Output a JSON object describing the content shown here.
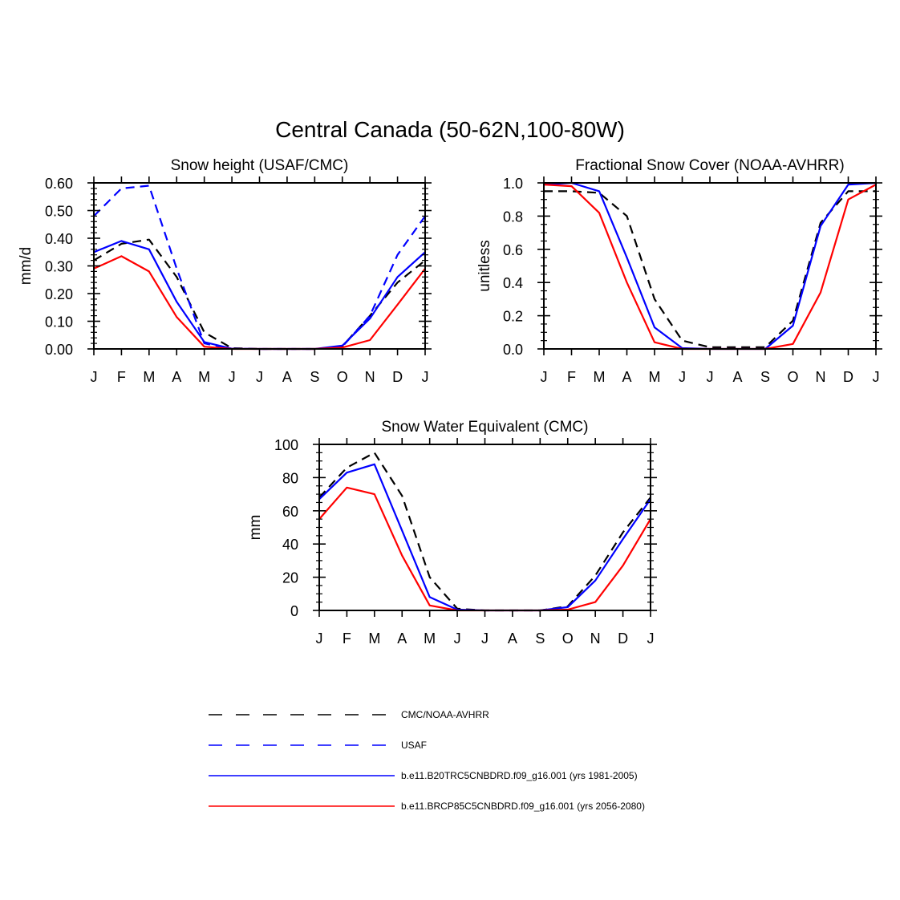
{
  "figure": {
    "title": "Central Canada (50-62N,100-80W)"
  },
  "legend": {
    "entries": [
      {
        "label": "CMC/NOAA-AVHRR",
        "color": "#000000",
        "dash": true
      },
      {
        "label": "USAF",
        "color": "#0000ff",
        "dash": true
      },
      {
        "label": "b.e11.B20TRC5CNBDRD.f09_g16.001 (yrs 1981-2005)",
        "color": "#0000ff",
        "dash": false
      },
      {
        "label": "b.e11.BRCP85C5CNBDRD.f09_g16.001 (yrs 2056-2080)",
        "color": "#ff0000",
        "dash": false
      }
    ]
  },
  "chart_data": [
    {
      "type": "line",
      "title": "Snow height (USAF/CMC)",
      "xlabel": "",
      "ylabel": "mm/d",
      "x": [
        "J",
        "F",
        "M",
        "A",
        "M",
        "J",
        "J",
        "A",
        "S",
        "O",
        "N",
        "D",
        "J"
      ],
      "ylim": [
        0,
        0.6
      ],
      "yticks": [
        "0.00",
        "0.10",
        "0.20",
        "0.30",
        "0.40",
        "0.50",
        "0.60"
      ],
      "series": [
        {
          "name": "CMC/NOAA-AVHRR",
          "color": "#000000",
          "dash": true,
          "values": [
            0.32,
            0.38,
            0.395,
            0.26,
            0.06,
            0.003,
            0,
            0,
            0,
            0.01,
            0.12,
            0.24,
            0.32
          ]
        },
        {
          "name": "USAF",
          "color": "#0000ff",
          "dash": true,
          "values": [
            0.48,
            0.58,
            0.59,
            0.29,
            0.02,
            0.001,
            0,
            0,
            0,
            0.008,
            0.12,
            0.34,
            0.48
          ]
        },
        {
          "name": "b.e11.B20TRC5CNBDRD.f09_g16.001 (yrs 1981-2005)",
          "color": "#0000ff",
          "dash": false,
          "values": [
            0.35,
            0.39,
            0.36,
            0.17,
            0.025,
            0.001,
            0,
            0,
            0,
            0.012,
            0.11,
            0.26,
            0.35
          ]
        },
        {
          "name": "b.e11.BRCP85C5CNBDRD.f09_g16.001 (yrs 2056-2080)",
          "color": "#ff0000",
          "dash": false,
          "values": [
            0.29,
            0.335,
            0.28,
            0.115,
            0.008,
            0,
            0,
            0,
            0,
            0.005,
            0.032,
            0.16,
            0.29
          ]
        }
      ]
    },
    {
      "type": "line",
      "title": "Fractional Snow Cover (NOAA-AVHRR)",
      "xlabel": "",
      "ylabel": "unitless",
      "x": [
        "J",
        "F",
        "M",
        "A",
        "M",
        "J",
        "J",
        "A",
        "S",
        "O",
        "N",
        "D",
        "J"
      ],
      "ylim": [
        0,
        1.0
      ],
      "yticks": [
        "0.0",
        "0.2",
        "0.4",
        "0.6",
        "0.8",
        "1.0"
      ],
      "series": [
        {
          "name": "CMC/NOAA-AVHRR",
          "color": "#000000",
          "dash": true,
          "values": [
            0.95,
            0.95,
            0.94,
            0.8,
            0.3,
            0.05,
            0.01,
            0.01,
            0.01,
            0.17,
            0.76,
            0.95,
            0.95
          ]
        },
        {
          "name": "b.e11.B20TRC5CNBDRD.f09_g16.001 (yrs 1981-2005)",
          "color": "#0000ff",
          "dash": false,
          "values": [
            0.99,
            1.0,
            0.95,
            0.55,
            0.13,
            0.005,
            0,
            0,
            0,
            0.14,
            0.74,
            0.99,
            1.0
          ]
        },
        {
          "name": "b.e11.BRCP85C5CNBDRD.f09_g16.001 (yrs 2056-2080)",
          "color": "#ff0000",
          "dash": false,
          "values": [
            0.99,
            0.98,
            0.82,
            0.4,
            0.04,
            0,
            0,
            0,
            0,
            0.03,
            0.34,
            0.9,
            0.99
          ]
        }
      ]
    },
    {
      "type": "line",
      "title": "Snow Water Equivalent (CMC)",
      "xlabel": "",
      "ylabel": "mm",
      "x": [
        "J",
        "F",
        "M",
        "A",
        "M",
        "J",
        "J",
        "A",
        "S",
        "O",
        "N",
        "D",
        "J"
      ],
      "ylim": [
        0,
        100
      ],
      "yticks": [
        "0",
        "20",
        "40",
        "60",
        "80",
        "100"
      ],
      "series": [
        {
          "name": "CMC/NOAA-AVHRR",
          "color": "#000000",
          "dash": true,
          "values": [
            68,
            86,
            95,
            69,
            20,
            1,
            0,
            0,
            0,
            2.5,
            21,
            47,
            68
          ]
        },
        {
          "name": "b.e11.B20TRC5CNBDRD.f09_g16.001 (yrs 1981-2005)",
          "color": "#0000ff",
          "dash": false,
          "values": [
            67,
            83,
            88,
            48,
            8,
            0.5,
            0,
            0,
            0,
            2,
            18,
            43,
            67
          ]
        },
        {
          "name": "b.e11.BRCP85C5CNBDRD.f09_g16.001 (yrs 2056-2080)",
          "color": "#ff0000",
          "dash": false,
          "values": [
            55,
            74,
            70,
            33,
            3,
            0,
            0,
            0,
            0,
            0.5,
            5,
            27,
            55
          ]
        }
      ]
    }
  ]
}
